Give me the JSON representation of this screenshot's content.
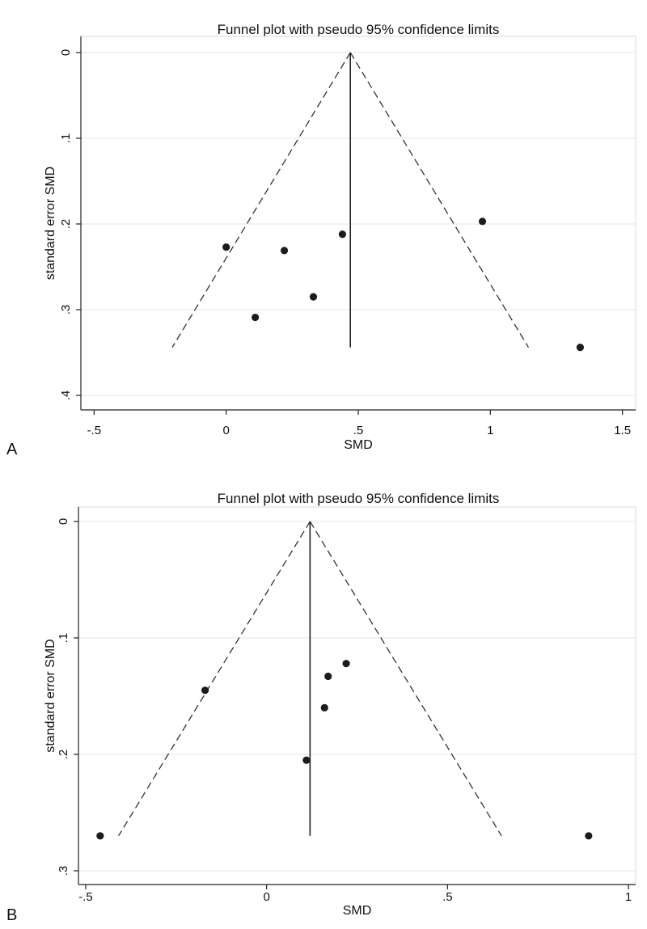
{
  "chart_data": [
    {
      "type": "scatter",
      "panel_label": "A",
      "title": "Funnel plot with pseudo 95% confidence limits",
      "xlabel": "SMD",
      "ylabel": "standard error SMD",
      "xlim": [
        -0.55,
        1.55
      ],
      "ylim": [
        0,
        0.4
      ],
      "y_reversed": true,
      "xticks": [
        -0.5,
        0,
        0.5,
        1,
        1.5
      ],
      "xtick_labels": [
        "-.5",
        "0",
        ".5",
        "1",
        "1.5"
      ],
      "yticks": [
        0,
        0.1,
        0.2,
        0.3,
        0.4
      ],
      "ytick_labels": [
        "0",
        ".1",
        ".2",
        ".3",
        ".4"
      ],
      "grid": true,
      "pooled_effect": 0.47,
      "funnel_se_max": 0.344,
      "points": [
        {
          "x": 0.0,
          "y": 0.227
        },
        {
          "x": 0.22,
          "y": 0.231
        },
        {
          "x": 0.44,
          "y": 0.212
        },
        {
          "x": 0.33,
          "y": 0.285
        },
        {
          "x": 0.11,
          "y": 0.309
        },
        {
          "x": 0.97,
          "y": 0.197
        },
        {
          "x": 1.34,
          "y": 0.344
        }
      ]
    },
    {
      "type": "scatter",
      "panel_label": "B",
      "title": "Funnel plot with pseudo 95% confidence limits",
      "xlabel": "SMD",
      "ylabel": "standard error SMD",
      "xlim": [
        -0.52,
        1.02
      ],
      "ylim": [
        0,
        0.3
      ],
      "y_reversed": true,
      "xticks": [
        -0.5,
        0,
        0.5,
        1
      ],
      "xtick_labels": [
        "-.5",
        "0",
        ".5",
        "1"
      ],
      "yticks": [
        0,
        0.1,
        0.2,
        0.3
      ],
      "ytick_labels": [
        "0",
        ".1",
        ".2",
        ".3"
      ],
      "grid": true,
      "pooled_effect": 0.12,
      "funnel_se_max": 0.27,
      "points": [
        {
          "x": -0.17,
          "y": 0.145
        },
        {
          "x": 0.17,
          "y": 0.133
        },
        {
          "x": 0.22,
          "y": 0.122
        },
        {
          "x": 0.16,
          "y": 0.16
        },
        {
          "x": 0.11,
          "y": 0.205
        },
        {
          "x": -0.46,
          "y": 0.27
        },
        {
          "x": 0.89,
          "y": 0.27
        }
      ]
    }
  ]
}
